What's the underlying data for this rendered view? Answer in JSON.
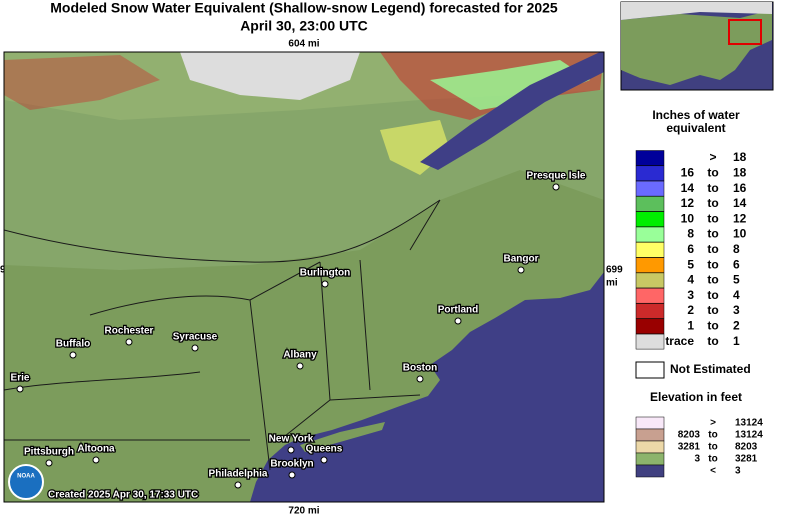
{
  "header": {
    "title_line1": "Modeled Snow Water Equivalent (Shallow-snow Legend) forecasted for 2025",
    "title_line2": "April 30, 23:00 UTC"
  },
  "map": {
    "top_distance": "604 mi",
    "bottom_distance": "720 mi",
    "right_distance_value": "699",
    "right_distance_unit": "mi",
    "left_edge_label": "9",
    "created": "Created 2025 Apr 30, 17:33 UTC",
    "logo": "NOAA",
    "cities": [
      "Presque Isle",
      "Bangor",
      "Burlington",
      "Portland",
      "Rochester",
      "Syracuse",
      "Buffalo",
      "Albany",
      "Boston",
      "Erie",
      "New York",
      "Queens",
      "Pittsburgh",
      "Altoona",
      "Brooklyn",
      "Philadelphia"
    ]
  },
  "legend": {
    "title_line1": "Inches of water",
    "title_line2": "equivalent",
    "rows": [
      {
        "color": "#00009a",
        "sep": ">",
        "high": "18"
      },
      {
        "color": "#2a2ad2",
        "low": "16",
        "sep": "to",
        "high": "18"
      },
      {
        "color": "#6a6aff",
        "low": "14",
        "sep": "to",
        "high": "16"
      },
      {
        "color": "#5cbf5c",
        "low": "12",
        "sep": "to",
        "high": "14"
      },
      {
        "color": "#00ee00",
        "low": "10",
        "sep": "to",
        "high": "12"
      },
      {
        "color": "#99ff99",
        "low": "8",
        "sep": "to",
        "high": "10"
      },
      {
        "color": "#ffff66",
        "low": "6",
        "sep": "to",
        "high": "8"
      },
      {
        "color": "#ff9900",
        "low": "5",
        "sep": "to",
        "high": "6"
      },
      {
        "color": "#c8c864",
        "low": "4",
        "sep": "to",
        "high": "5"
      },
      {
        "color": "#ff6666",
        "low": "3",
        "sep": "to",
        "high": "4"
      },
      {
        "color": "#cc2a2a",
        "low": "2",
        "sep": "to",
        "high": "3"
      },
      {
        "color": "#990000",
        "low": "1",
        "sep": "to",
        "high": "2"
      },
      {
        "color": "#dddddd",
        "low": "trace",
        "sep": "to",
        "high": "1"
      }
    ],
    "not_estimated": "Not Estimated",
    "elevation_title": "Elevation in feet",
    "elevation_rows": [
      {
        "color": "#f8e8f8",
        "sep": ">",
        "high": "13124"
      },
      {
        "color": "#c8a090",
        "low": "8203",
        "sep": "to",
        "high": "13124"
      },
      {
        "color": "#ecd8a8",
        "low": "3281",
        "sep": "to",
        "high": "8203"
      },
      {
        "color": "#8cb46c",
        "low": "3",
        "sep": "to",
        "high": "3281"
      },
      {
        "color": "#404080",
        "sep": "<",
        "high": "3"
      }
    ]
  }
}
